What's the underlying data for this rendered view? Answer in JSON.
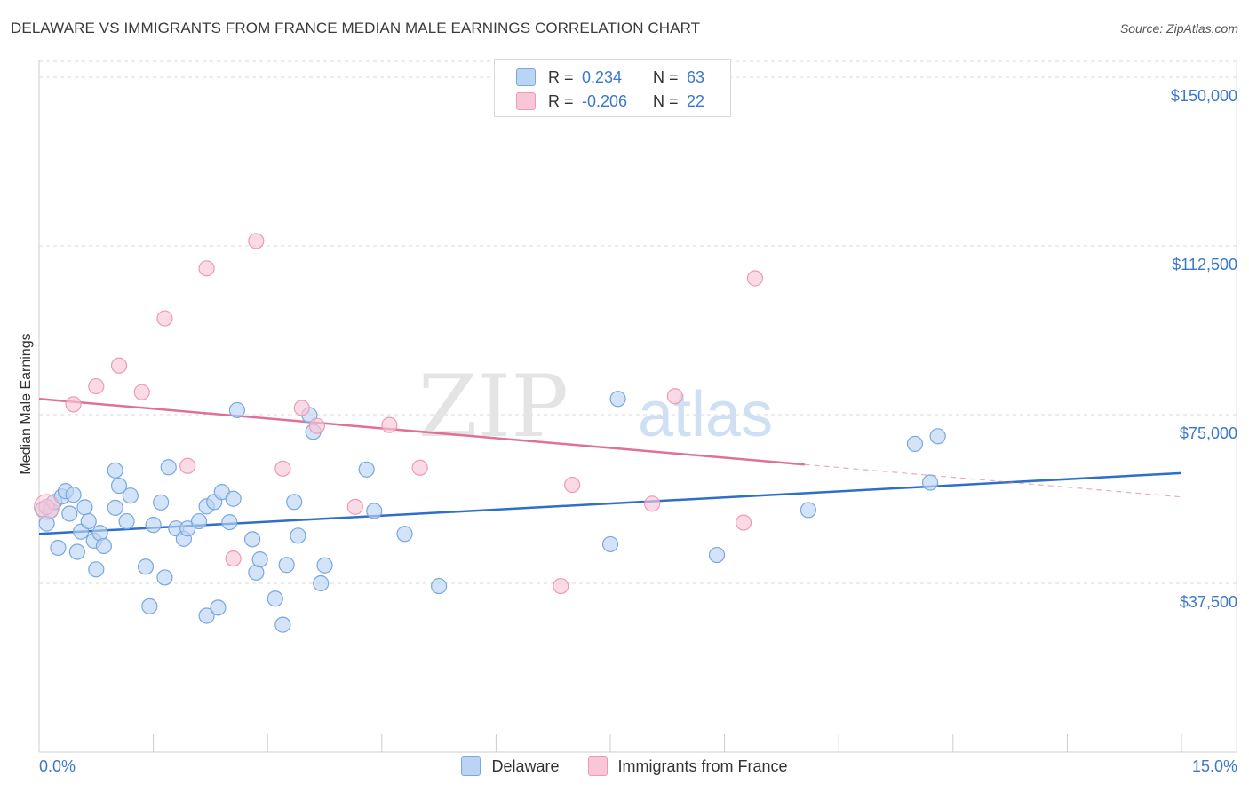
{
  "title": "DELAWARE VS IMMIGRANTS FROM FRANCE MEDIAN MALE EARNINGS CORRELATION CHART",
  "source": "Source: ZipAtlas.com",
  "watermark": {
    "zip": "ZIP",
    "atlas": "atlas"
  },
  "legend_top": [
    {
      "r_label": "R =",
      "r_value": "0.234",
      "n_label": "N =",
      "n_value": "63",
      "series": "Delaware"
    },
    {
      "r_label": "R =",
      "r_value": "-0.206",
      "n_label": "N =",
      "n_value": "22",
      "series": "Immigrants from France"
    }
  ],
  "legend_bottom": [
    {
      "label": "Delaware"
    },
    {
      "label": "Immigrants from France"
    }
  ],
  "colors": {
    "delaware_fill": "#bcd4f4",
    "delaware_stroke": "#7aa7e0",
    "delaware_line": "#2d6fcb",
    "france_fill": "#f8c6d6",
    "france_stroke": "#ee9ab5",
    "france_line": "#e0709a",
    "tick_label": "#3b78c9",
    "grid": "#d8d8d8"
  },
  "chart_data": {
    "type": "scatter",
    "title": "DELAWARE VS IMMIGRANTS FROM FRANCE MEDIAN MALE EARNINGS CORRELATION CHART",
    "xlabel": "",
    "ylabel": "Median Male Earnings",
    "xlim": [
      0,
      15
    ],
    "ylim": [
      0,
      153750
    ],
    "x_tick_labels": [
      {
        "value": 0,
        "label": "0.0%"
      },
      {
        "value": 15,
        "label": "15.0%"
      }
    ],
    "y_tick_labels": [
      {
        "value": 37500,
        "label": "$37,500"
      },
      {
        "value": 75000,
        "label": "$75,000"
      },
      {
        "value": 112500,
        "label": "$112,500"
      },
      {
        "value": 150000,
        "label": "$150,000"
      }
    ],
    "series": [
      {
        "name": "Delaware",
        "r": 0.234,
        "n": 63,
        "trend": {
          "x0": 0,
          "y0": 48500,
          "x1": 15,
          "y1": 62000
        },
        "points": [
          [
            0.05,
            54000
          ],
          [
            0.1,
            50800
          ],
          [
            0.15,
            53700
          ],
          [
            0.2,
            55600
          ],
          [
            0.25,
            45400
          ],
          [
            0.3,
            56800
          ],
          [
            0.35,
            58000
          ],
          [
            0.4,
            53000
          ],
          [
            0.45,
            57200
          ],
          [
            0.5,
            44500
          ],
          [
            0.55,
            49000
          ],
          [
            0.6,
            54400
          ],
          [
            0.65,
            51300
          ],
          [
            0.72,
            47000
          ],
          [
            0.75,
            40600
          ],
          [
            0.8,
            48700
          ],
          [
            0.85,
            45800
          ],
          [
            1.0,
            62600
          ],
          [
            1.0,
            54300
          ],
          [
            1.05,
            59200
          ],
          [
            1.2,
            57000
          ],
          [
            1.15,
            51300
          ],
          [
            1.4,
            41200
          ],
          [
            1.45,
            32400
          ],
          [
            1.5,
            50500
          ],
          [
            1.6,
            55500
          ],
          [
            1.65,
            38800
          ],
          [
            1.7,
            63300
          ],
          [
            1.8,
            49700
          ],
          [
            1.9,
            47400
          ],
          [
            1.95,
            49700
          ],
          [
            2.1,
            51300
          ],
          [
            2.2,
            54600
          ],
          [
            2.3,
            55600
          ],
          [
            2.4,
            57800
          ],
          [
            2.2,
            30300
          ],
          [
            2.35,
            32100
          ],
          [
            2.5,
            51100
          ],
          [
            2.55,
            56300
          ],
          [
            2.6,
            76000
          ],
          [
            2.8,
            47300
          ],
          [
            2.85,
            39900
          ],
          [
            2.9,
            42800
          ],
          [
            3.1,
            34100
          ],
          [
            3.2,
            28300
          ],
          [
            3.25,
            41600
          ],
          [
            3.35,
            55600
          ],
          [
            3.4,
            48100
          ],
          [
            3.6,
            71200
          ],
          [
            3.7,
            37500
          ],
          [
            3.75,
            41500
          ],
          [
            3.55,
            74900
          ],
          [
            4.3,
            62800
          ],
          [
            4.4,
            53600
          ],
          [
            4.8,
            48500
          ],
          [
            5.25,
            36900
          ],
          [
            7.5,
            46200
          ],
          [
            7.6,
            78500
          ],
          [
            8.9,
            43800
          ],
          [
            10.1,
            53800
          ],
          [
            11.5,
            68500
          ],
          [
            11.7,
            59900
          ],
          [
            11.8,
            70200
          ]
        ]
      },
      {
        "name": "Immigrants from France",
        "r": -0.206,
        "n": 22,
        "trend": {
          "x0": 0,
          "y0": 78500,
          "x1": 10.05,
          "y1": 63900
        },
        "trend_dashed": {
          "x0": 10.05,
          "y0": 63900,
          "x1": 15,
          "y1": 56700
        },
        "points": [
          [
            0.1,
            54500
          ],
          [
            0.45,
            77300
          ],
          [
            0.75,
            81300
          ],
          [
            1.05,
            85900
          ],
          [
            1.35,
            80000
          ],
          [
            1.65,
            96400
          ],
          [
            1.95,
            63600
          ],
          [
            2.2,
            107500
          ],
          [
            2.55,
            43000
          ],
          [
            2.85,
            113600
          ],
          [
            3.2,
            63000
          ],
          [
            3.45,
            76500
          ],
          [
            3.65,
            72500
          ],
          [
            4.15,
            54500
          ],
          [
            4.6,
            72700
          ],
          [
            5.0,
            63200
          ],
          [
            6.85,
            36900
          ],
          [
            7.0,
            59400
          ],
          [
            8.05,
            55200
          ],
          [
            8.35,
            79100
          ],
          [
            9.25,
            51000
          ],
          [
            9.4,
            105300
          ]
        ]
      }
    ]
  }
}
